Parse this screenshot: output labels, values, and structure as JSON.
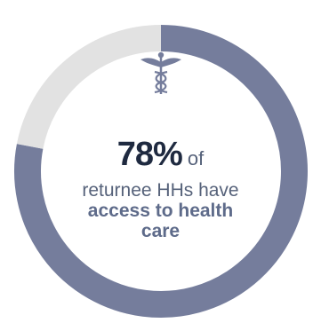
{
  "chart_data": {
    "type": "pie",
    "variant": "donut",
    "slices": [
      {
        "value": 78
      },
      {
        "value": 22
      }
    ],
    "colors": {
      "filled": "#757d9c",
      "remaining": "#e2e2e2"
    },
    "start": "top",
    "direction": "clockwise",
    "center_icon": "caduceus-icon",
    "center_text": {
      "value": "78%",
      "connector": "of",
      "line2": "returnee HHs have",
      "line3": "access to health",
      "line4": "care"
    }
  }
}
